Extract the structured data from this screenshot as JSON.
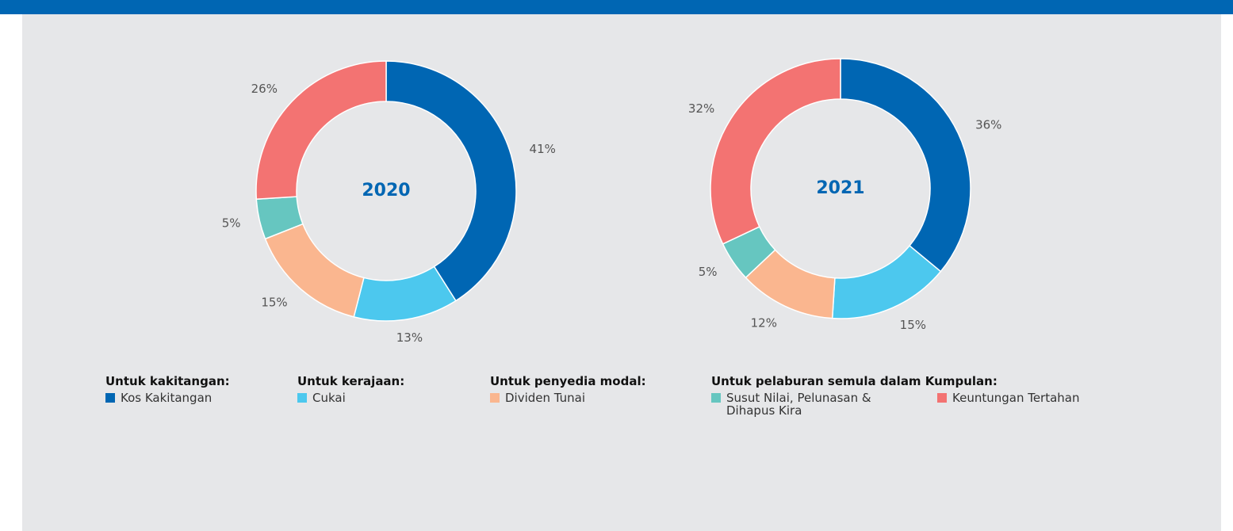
{
  "chart_data": [
    {
      "type": "pie",
      "title": "2020",
      "values": [
        41,
        13,
        15,
        5,
        26
      ],
      "value_labels": [
        "41%",
        "13%",
        "15%",
        "5%",
        "26%"
      ],
      "colors": [
        "#0066b3",
        "#4cc8ee",
        "#fab68f",
        "#66c6c0",
        "#f37372"
      ]
    },
    {
      "type": "pie",
      "title": "2021",
      "values": [
        36,
        15,
        12,
        5,
        32
      ],
      "value_labels": [
        "36%",
        "15%",
        "12%",
        "5%",
        "32%"
      ],
      "colors": [
        "#0066b3",
        "#4cc8ee",
        "#fab68f",
        "#66c6c0",
        "#f37372"
      ]
    }
  ],
  "legend": [
    {
      "title": "Untuk kakitangan:",
      "items": [
        {
          "name": "Kos Kakitangan",
          "color": "#0066b3"
        }
      ]
    },
    {
      "title": "Untuk kerajaan:",
      "items": [
        {
          "name": "Cukai",
          "color": "#4cc8ee"
        }
      ]
    },
    {
      "title": "Untuk penyedia modal:",
      "items": [
        {
          "name": "Dividen Tunai",
          "color": "#fab68f"
        }
      ]
    },
    {
      "title": "Untuk pelaburan semula dalam Kumpulan:",
      "items": [
        {
          "name": "Susut Nilai, Pelunasan & Dihapus Kira",
          "color": "#66c6c0"
        },
        {
          "name": "Keuntungan Tertahan",
          "color": "#f37372"
        }
      ]
    }
  ]
}
